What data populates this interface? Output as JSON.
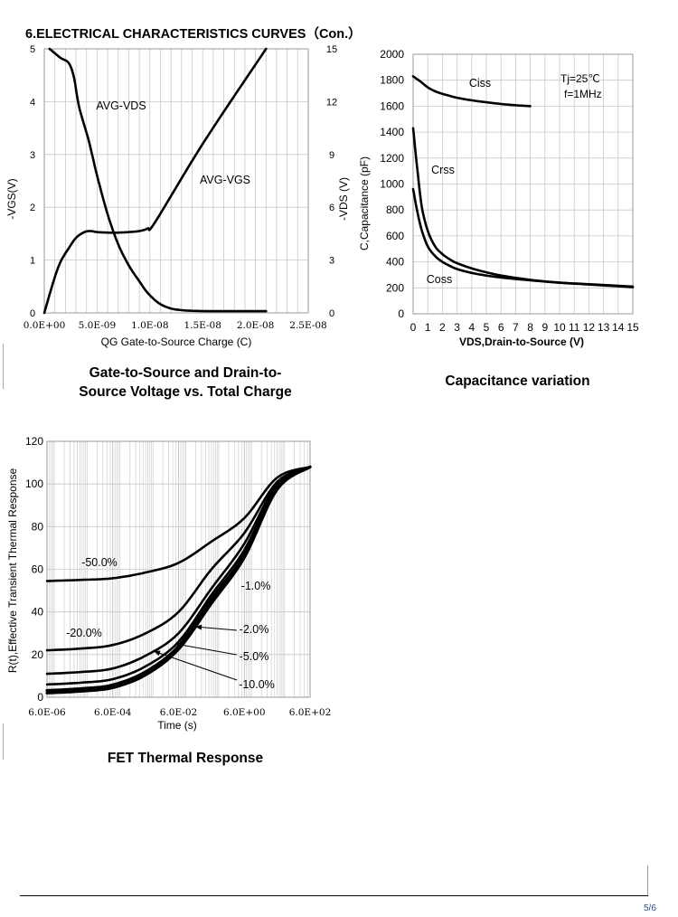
{
  "section_title": "6.ELECTRICAL CHARACTERISTICS CURVES（Con.）",
  "page_number": "5/6",
  "chart_data": [
    {
      "type": "line",
      "title": "Gate-to-Source and Drain-to-Source Voltage vs. Total Charge",
      "title_lines": [
        "Gate-to-Source and Drain-to-",
        "Source Voltage vs. Total Charge"
      ],
      "xlabel": "QG Gate-to-Source Charge (C)",
      "ylabel": "-VGS(V)",
      "y2label": "-VDS (V)",
      "xlim": [
        0,
        2.5e-08
      ],
      "ylim": [
        0,
        5
      ],
      "y2lim": [
        0,
        15
      ],
      "x_tick_labels": [
        "0.0E+00",
        "5.0E-09",
        "1.0E-08",
        "1.5E-08",
        "2.0E-08",
        "2.5E-08"
      ],
      "y_tick_labels": [
        "0",
        "1",
        "2",
        "3",
        "4",
        "5"
      ],
      "y2_tick_labels": [
        "0",
        "3",
        "6",
        "9",
        "12",
        "15"
      ],
      "grid": true,
      "series": [
        {
          "name": "AVG-VDS",
          "axis": "right",
          "x": [
            5e-10,
            1.5e-09,
            2.3e-09,
            2.8e-09,
            3.3e-09,
            4.2e-09,
            5e-09,
            6e-09,
            7e-09,
            8e-09,
            9e-09,
            1e-08,
            1.15e-08,
            1.4e-08,
            2.1e-08
          ],
          "y": [
            15,
            14.5,
            14.2,
            13.4,
            11.7,
            9.8,
            7.8,
            5.6,
            3.9,
            2.7,
            1.8,
            1.0,
            0.35,
            0.12,
            0.1
          ]
        },
        {
          "name": "AVG-VGS",
          "axis": "left",
          "x": [
            0,
            8e-10,
            1.5e-09,
            2.3e-09,
            3e-09,
            3.7e-09,
            4.3e-09,
            5e-09,
            6e-09,
            7e-09,
            8e-09,
            9e-09,
            9.8e-09,
            1.05e-08,
            1.5e-08,
            2.1e-08
          ],
          "y": [
            0,
            0.55,
            0.95,
            1.22,
            1.42,
            1.52,
            1.55,
            1.53,
            1.52,
            1.52,
            1.53,
            1.55,
            1.6,
            1.72,
            3.2,
            5.0
          ]
        }
      ],
      "annotations": [
        "AVG-VDS",
        "AVG-VGS"
      ]
    },
    {
      "type": "line",
      "title": "Capacitance variation",
      "xlabel": "VDS,Drain-to-Source (V)",
      "ylabel": "C,Capacitance (pF)",
      "xlim": [
        0,
        15
      ],
      "ylim": [
        0,
        2000
      ],
      "x_tick_labels": [
        "0",
        "1",
        "2",
        "3",
        "4",
        "5",
        "6",
        "7",
        "8",
        "9",
        "10",
        "11",
        "12",
        "13",
        "14",
        "15"
      ],
      "y_tick_labels": [
        "0",
        "200",
        "400",
        "600",
        "800",
        "1000",
        "1200",
        "1400",
        "1600",
        "1800",
        "2000"
      ],
      "grid": true,
      "conditions": [
        "Tj=25℃",
        "f=1MHz"
      ],
      "series": [
        {
          "name": "Ciss",
          "x": [
            0,
            0.5,
            1,
            1.5,
            2,
            3,
            4,
            5,
            6,
            7,
            8
          ],
          "y": [
            1830,
            1790,
            1745,
            1715,
            1695,
            1665,
            1645,
            1630,
            1617,
            1607,
            1600
          ]
        },
        {
          "name": "Crss",
          "x": [
            0,
            0.3,
            0.6,
            1,
            1.5,
            2,
            2.5,
            3,
            4,
            5,
            6,
            8,
            10,
            12,
            15
          ],
          "y": [
            1430,
            1100,
            820,
            640,
            520,
            460,
            420,
            390,
            350,
            320,
            295,
            262,
            240,
            228,
            210
          ]
        },
        {
          "name": "Coss",
          "x": [
            0,
            0.3,
            0.6,
            1,
            1.5,
            2,
            2.5,
            3,
            4,
            5,
            6,
            8,
            10,
            12,
            15
          ],
          "y": [
            960,
            780,
            640,
            520,
            445,
            400,
            370,
            345,
            315,
            295,
            280,
            258,
            240,
            226,
            205
          ]
        }
      ]
    },
    {
      "type": "line",
      "title": "FET Thermal Response",
      "xlabel": "Time (s)",
      "ylabel": "R(t),Effective Transient Thermal Response",
      "xscale": "log",
      "xlim": [
        6e-06,
        600
      ],
      "ylim": [
        0,
        120
      ],
      "x_tick_labels": [
        "6.0E-06",
        "6.0E-04",
        "6.0E-02",
        "6.0E+00",
        "6.0E+02"
      ],
      "y_tick_labels": [
        "0",
        "20",
        "40",
        "60",
        "80",
        "100",
        "120"
      ],
      "grid": true,
      "series": [
        {
          "name": "-50.0%",
          "x": [
            6e-06,
            6e-05,
            0.0006,
            0.006,
            0.06,
            0.6,
            6,
            60,
            600
          ],
          "y": [
            54.5,
            55,
            55.8,
            58.5,
            63,
            73,
            84,
            103,
            108
          ]
        },
        {
          "name": "-20.0%",
          "x": [
            6e-06,
            6e-05,
            0.0006,
            0.006,
            0.06,
            0.6,
            6,
            60,
            600
          ],
          "y": [
            22,
            22.8,
            24.5,
            30,
            40,
            60,
            77,
            101,
            108
          ]
        },
        {
          "name": "-10.0%",
          "x": [
            6e-06,
            6e-05,
            0.0006,
            0.006,
            0.06,
            0.6,
            6,
            60,
            600
          ],
          "y": [
            11,
            11.8,
            13.5,
            19.5,
            30,
            51,
            72,
            100,
            108
          ]
        },
        {
          "name": "-5.0%",
          "x": [
            6e-06,
            6e-05,
            0.0006,
            0.006,
            0.06,
            0.6,
            6,
            60,
            600
          ],
          "y": [
            6,
            6.8,
            8.5,
            14.5,
            26,
            48,
            69,
            99,
            108
          ]
        },
        {
          "name": "-2.0%",
          "x": [
            6e-06,
            6e-05,
            0.0006,
            0.006,
            0.06,
            0.6,
            6,
            60,
            600
          ],
          "y": [
            3.2,
            4,
            5.8,
            12,
            24,
            46,
            67,
            98,
            108
          ]
        },
        {
          "name": "-1.0%",
          "x": [
            6e-06,
            6e-05,
            0.0006,
            0.006,
            0.06,
            0.6,
            6,
            60,
            600
          ],
          "y": [
            2,
            2.8,
            4.5,
            10.5,
            22.5,
            44,
            65.5,
            97.5,
            108
          ]
        }
      ]
    }
  ]
}
